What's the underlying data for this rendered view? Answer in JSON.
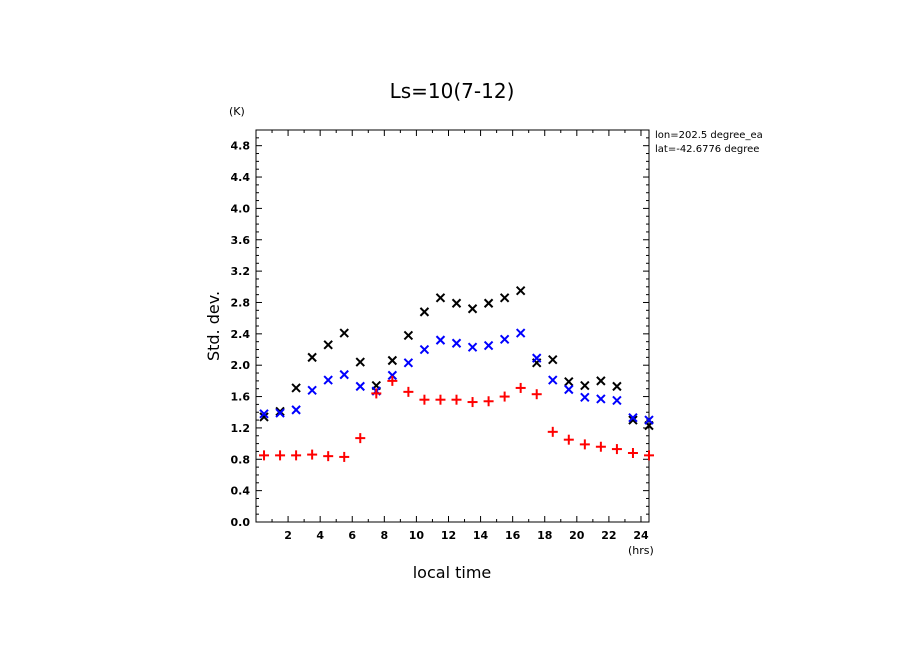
{
  "chart_data": {
    "type": "scatter",
    "title": "Ls=10(7-12)",
    "xlabel": "local time",
    "ylabel": "Std. dev.",
    "x_unit": "(hrs)",
    "y_unit": "(K)",
    "xlim": [
      0,
      24.5
    ],
    "ylim": [
      0,
      5.0
    ],
    "xticks": [
      2,
      4,
      6,
      8,
      10,
      12,
      14,
      16,
      18,
      20,
      22,
      24
    ],
    "yticks": [
      0.0,
      0.4,
      0.8,
      1.2,
      1.6,
      2.0,
      2.4,
      2.8,
      3.2,
      3.6,
      4.0,
      4.4,
      4.8
    ],
    "ytick_labels": [
      "0.0",
      "0.4",
      "0.8",
      "1.2",
      "1.6",
      "2.0",
      "2.4",
      "2.8",
      "3.2",
      "3.6",
      "4.0",
      "4.4",
      "4.8"
    ],
    "x": [
      0.5,
      1.5,
      2.5,
      3.5,
      4.5,
      5.5,
      6.5,
      7.5,
      8.5,
      9.5,
      10.5,
      11.5,
      12.5,
      13.5,
      14.5,
      15.5,
      16.5,
      17.5,
      18.5,
      19.5,
      20.5,
      21.5,
      22.5,
      23.5,
      24.5
    ],
    "series": [
      {
        "color": "#000000",
        "marker": "x",
        "values": [
          1.34,
          1.41,
          1.71,
          2.1,
          2.26,
          2.41,
          2.04,
          1.74,
          2.06,
          2.38,
          2.68,
          2.86,
          2.79,
          2.72,
          2.79,
          2.86,
          2.95,
          2.03,
          2.07,
          1.79,
          1.74,
          1.8,
          1.73,
          1.3,
          1.23
        ]
      },
      {
        "color": "#0000ff",
        "marker": "x",
        "values": [
          1.38,
          1.39,
          1.43,
          1.68,
          1.81,
          1.88,
          1.73,
          1.67,
          1.87,
          2.03,
          2.2,
          2.32,
          2.28,
          2.23,
          2.25,
          2.33,
          2.41,
          2.09,
          1.81,
          1.69,
          1.59,
          1.57,
          1.55,
          1.33,
          1.3
        ]
      },
      {
        "color": "#ff0000",
        "marker": "+",
        "values": [
          0.85,
          0.85,
          0.85,
          0.86,
          0.84,
          0.83,
          1.07,
          1.64,
          1.8,
          1.66,
          1.56,
          1.56,
          1.56,
          1.53,
          1.54,
          1.6,
          1.71,
          1.63,
          1.15,
          1.05,
          0.99,
          0.96,
          0.93,
          0.88,
          0.85
        ]
      }
    ],
    "annotations": [
      "lon=202.5 degree_ea",
      "lat=-42.6776 degree"
    ],
    "grid": false,
    "legend": "none"
  }
}
